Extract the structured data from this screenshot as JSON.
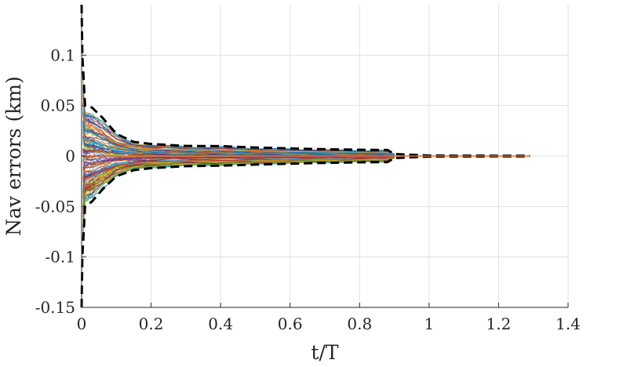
{
  "chart_data": {
    "type": "line",
    "title": "",
    "xlabel": "t/T",
    "ylabel": "Nav errors (km)",
    "xlim": [
      0,
      1.4
    ],
    "ylim": [
      -0.15,
      0.15
    ],
    "xticks": [
      0,
      0.2,
      0.4,
      0.6,
      0.8,
      1,
      1.2,
      1.4
    ],
    "xtick_labels": [
      "0",
      "0.2",
      "0.4",
      "0.6",
      "0.8",
      "1",
      "1.2",
      "1.4"
    ],
    "yticks": [
      -0.15,
      -0.1,
      -0.05,
      0,
      0.05,
      0.1
    ],
    "ytick_labels": [
      "-0.15",
      "-0.1",
      "-0.05",
      "0",
      "0.05",
      "0.1"
    ],
    "grid": true,
    "legend": "none",
    "monte_carlo_runs": {
      "count": 120,
      "t_end": 0.9,
      "description_of_spread": "many colored trajectories converging to zero"
    },
    "series": [
      {
        "role": "upper-bound",
        "style": "dashed",
        "color": "#000000",
        "x": [
          0,
          0.002,
          0.01,
          0.03,
          0.06,
          0.1,
          0.15,
          0.2,
          0.3,
          0.4,
          0.5,
          0.6,
          0.7,
          0.8,
          0.88,
          0.9,
          1.0,
          1.1,
          1.2,
          1.29
        ],
        "y": [
          0.15,
          0.1,
          0.05,
          0.048,
          0.038,
          0.022,
          0.014,
          0.012,
          0.01,
          0.0098,
          0.0085,
          0.0075,
          0.0068,
          0.0062,
          0.006,
          0.002,
          0.0005,
          0.0004,
          0.0003,
          0.0002
        ]
      },
      {
        "role": "lower-bound",
        "style": "dashed",
        "color": "#000000",
        "x": [
          0,
          0.002,
          0.01,
          0.03,
          0.06,
          0.1,
          0.15,
          0.2,
          0.3,
          0.4,
          0.5,
          0.6,
          0.7,
          0.8,
          0.88,
          0.9,
          1.0,
          1.1,
          1.2,
          1.29
        ],
        "y": [
          -0.15,
          -0.1,
          -0.05,
          -0.045,
          -0.033,
          -0.02,
          -0.014,
          -0.012,
          -0.01,
          -0.0095,
          -0.0085,
          -0.0075,
          -0.0068,
          -0.0062,
          -0.006,
          -0.002,
          -0.0005,
          -0.0004,
          -0.0003,
          -0.0002
        ]
      },
      {
        "role": "mean",
        "style": "solid",
        "color": "#e8702a",
        "x": [
          0,
          0.2,
          0.4,
          0.6,
          0.8,
          0.9,
          1.0,
          1.29
        ],
        "y": [
          0,
          0,
          0,
          0,
          0,
          0,
          0,
          0
        ]
      }
    ]
  }
}
